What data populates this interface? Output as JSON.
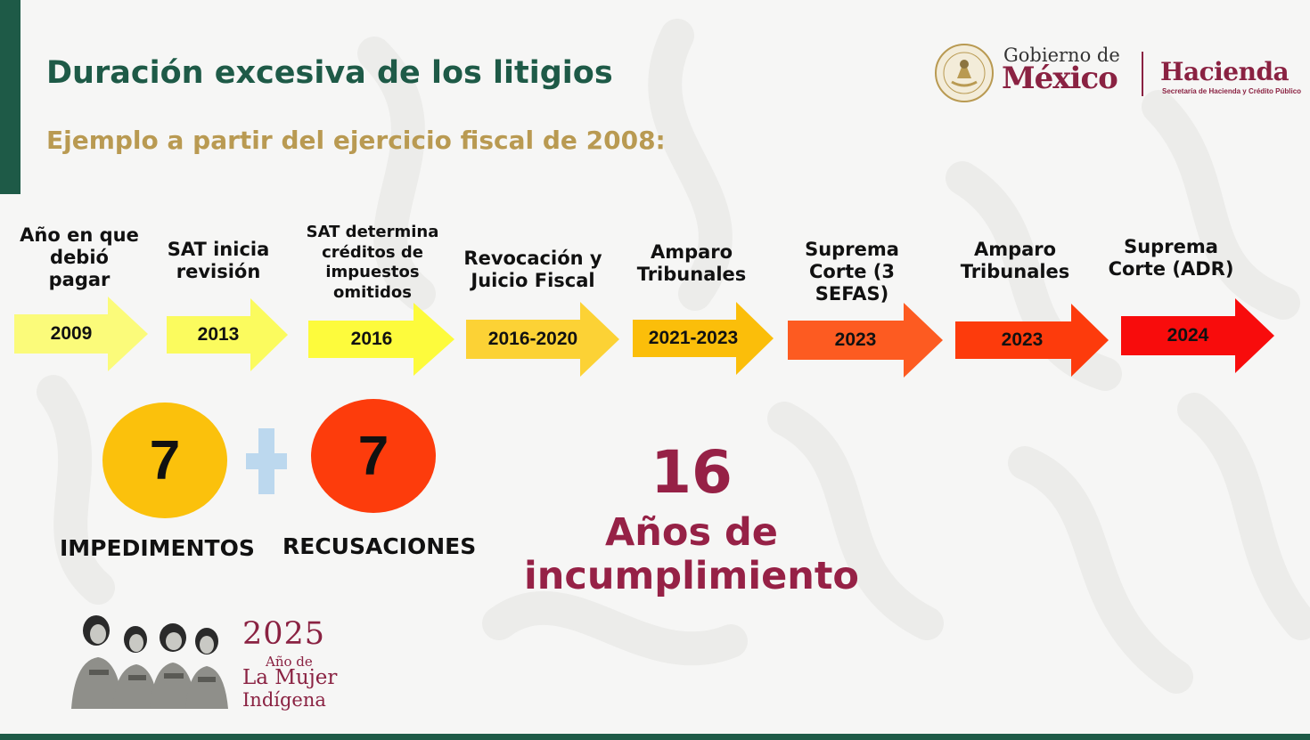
{
  "header": {
    "title": "Duración excesiva de los litigios",
    "subtitle": "Ejemplo a partir del ejercicio fiscal de 2008:"
  },
  "logos": {
    "gobierno_line1": "Gobierno de",
    "gobierno_line2": "México",
    "hacienda": "Hacienda",
    "hacienda_sub": "Secretaría de Hacienda y Crédito Público",
    "seal_icon": "mexican-coat-of-arms-seal-icon"
  },
  "timeline": [
    {
      "label": [
        "Año en que",
        "debió",
        "pagar"
      ],
      "year": "2009",
      "color": "#fbfb7a"
    },
    {
      "label": [
        "SAT inicia",
        "revisión"
      ],
      "year": "2013",
      "color": "#fbfb5e"
    },
    {
      "label": [
        "SAT determina",
        "créditos de",
        "impuestos",
        "omitidos"
      ],
      "year": "2016",
      "color": "#fdfb3c"
    },
    {
      "label": [
        "Revocación y",
        "Juicio Fiscal"
      ],
      "year": "2016-2020",
      "color": "#fcd235"
    },
    {
      "label": [
        "Amparo",
        "Tribunales"
      ],
      "year": "2021-2023",
      "color": "#fbbe0a"
    },
    {
      "label": [
        "Suprema",
        "Corte (3 SEFAS)"
      ],
      "year": "2023",
      "color": "#fd5b21"
    },
    {
      "label": [
        "Amparo",
        "Tribunales"
      ],
      "year": "2023",
      "color": "#fd3b0c"
    },
    {
      "label": [
        "Suprema",
        "Corte (ADR)"
      ],
      "year": "2024",
      "color": "#f80c0c"
    }
  ],
  "counts": {
    "impedimentos_value": "7",
    "impedimentos_label": "IMPEDIMENTOS",
    "impedimentos_color": "#fbc10c",
    "recusaciones_value": "7",
    "recusaciones_label": "RECUSACIONES",
    "recusaciones_color": "#fd3c0c",
    "plus_icon": "plus-icon"
  },
  "total": {
    "value": "16",
    "text_line1": "Años de",
    "text_line2": "incumplimiento"
  },
  "footer_logo": {
    "year": "2025",
    "line1": "Año de",
    "line2": "La Mujer",
    "line3": "Indígena"
  },
  "colors": {
    "primary_green": "#1e5a47",
    "gold": "#b99a52",
    "guinda": "#962146"
  }
}
